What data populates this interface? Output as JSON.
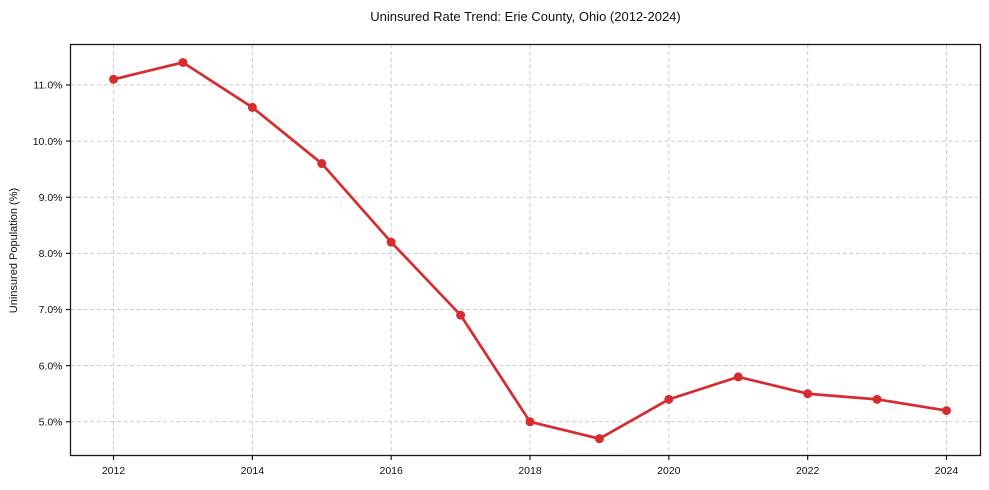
{
  "chart_data": {
    "type": "line",
    "title": "Uninsured Rate Trend: Erie County, Ohio (2012-2024)",
    "xlabel": "",
    "ylabel": "Uninsured Population (%)",
    "x": [
      2012,
      2013,
      2014,
      2015,
      2016,
      2017,
      2018,
      2019,
      2020,
      2021,
      2022,
      2023,
      2024
    ],
    "series": [
      {
        "name": "Uninsured rate",
        "values": [
          11.1,
          11.4,
          10.6,
          9.6,
          8.2,
          6.9,
          5.0,
          4.7,
          5.4,
          5.8,
          5.5,
          5.4,
          5.2
        ]
      }
    ],
    "xlim": [
      2011.38,
      2024.49
    ],
    "ylim": [
      4.4,
      11.72
    ],
    "xticks": [
      2012,
      2014,
      2016,
      2018,
      2020,
      2022,
      2024
    ],
    "xtick_labels": [
      "2012",
      "2014",
      "2016",
      "2018",
      "2020",
      "2022",
      "2024"
    ],
    "yticks": [
      5,
      6,
      7,
      8,
      9,
      10,
      11
    ],
    "ytick_labels": [
      "5.0%",
      "6.0%",
      "7.0%",
      "8.0%",
      "9.0%",
      "10.0%",
      "11.0%"
    ],
    "grid": true,
    "legend_position": "none",
    "colors": {
      "line": "#d62b2f",
      "marker": "#d62b2f",
      "grid": "#cccccc",
      "spine": "#1a1a1a",
      "text": "#111111",
      "background": "#ffffff"
    }
  }
}
